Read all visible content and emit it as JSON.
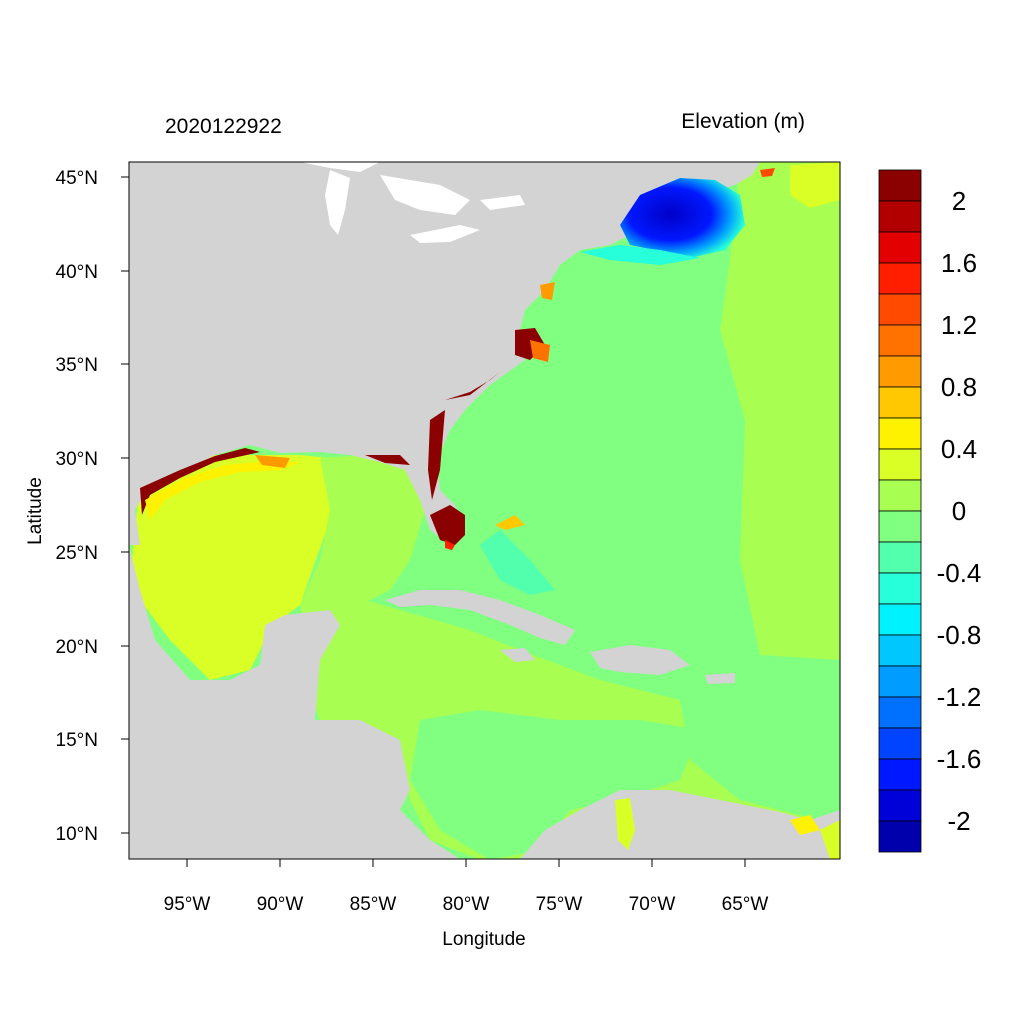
{
  "title_left": "2020122922",
  "title_right": "Elevation (m)",
  "axis": {
    "xlabel": "Longitude",
    "ylabel": "Latitude",
    "x_ticks": [
      "95°W",
      "90°W",
      "85°W",
      "80°W",
      "75°W",
      "70°W",
      "65°W"
    ],
    "y_ticks": [
      "45°N",
      "40°N",
      "35°N",
      "30°N",
      "25°N",
      "20°N",
      "15°N",
      "10°N"
    ]
  },
  "colorbar": {
    "labels": [
      "2",
      "1.6",
      "1.2",
      "0.8",
      "0.4",
      "0",
      "-0.4",
      "-0.8",
      "-1.2",
      "-1.6",
      "-2"
    ],
    "colors": [
      "#8b0000",
      "#b20000",
      "#e30000",
      "#ff1e00",
      "#ff4a00",
      "#ff7200",
      "#ff9a00",
      "#ffc800",
      "#fff200",
      "#d9ff26",
      "#a8ff52",
      "#80ff80",
      "#52ffad",
      "#26ffd9",
      "#00f2ff",
      "#00c8ff",
      "#009cff",
      "#0070ff",
      "#0044ff",
      "#0018ff",
      "#0000d9",
      "#0000ad"
    ]
  },
  "map_colors": {
    "land": "#d3d3d3",
    "water_base": "#80ff80",
    "gulf_high": "#d9ff26",
    "caribbean": "#a8ff52",
    "surge_high": "#8b0000",
    "new_england_low": "#0018ff"
  }
}
